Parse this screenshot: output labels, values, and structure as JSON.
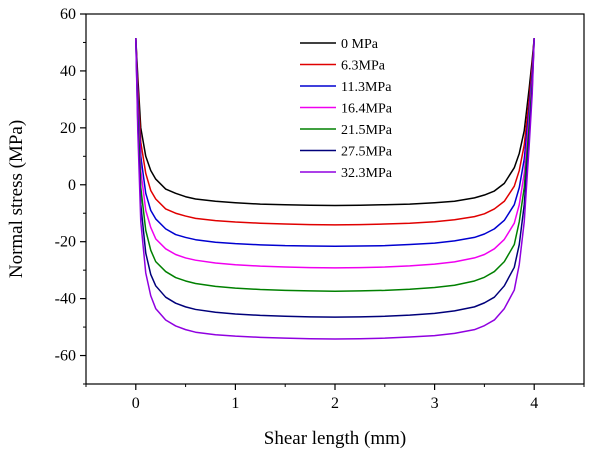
{
  "chart_data": {
    "type": "line",
    "title": "",
    "xlabel": "Shear length (mm)",
    "ylabel": "Normal stress (MPa)",
    "xlim": [
      -0.5,
      4.5
    ],
    "ylim": [
      -70,
      60
    ],
    "xticks": [
      0,
      1,
      2,
      3,
      4
    ],
    "yticks": [
      -60,
      -40,
      -20,
      0,
      20,
      40,
      60
    ],
    "x_tick_labels": [
      "0",
      "1",
      "2",
      "3",
      "4"
    ],
    "y_tick_labels": [
      "-60",
      "-40",
      "-20",
      "0",
      "20",
      "40",
      "60"
    ],
    "grid": false,
    "legend_position": "top-center",
    "x": [
      0,
      0.02,
      0.05,
      0.1,
      0.15,
      0.2,
      0.3,
      0.4,
      0.5,
      0.6,
      0.8,
      1.0,
      1.25,
      1.5,
      1.75,
      2.0,
      2.25,
      2.5,
      2.75,
      3.0,
      3.2,
      3.4,
      3.5,
      3.6,
      3.7,
      3.8,
      3.85,
      3.9,
      3.95,
      3.98,
      4.0
    ],
    "series": [
      {
        "name": "0 MPa",
        "color": "#000000",
        "values": [
          51.5,
          38,
          20,
          10,
          5,
          2,
          -1.5,
          -3,
          -4.2,
          -5,
          -5.8,
          -6.3,
          -6.8,
          -7.0,
          -7.2,
          -7.3,
          -7.2,
          -7.0,
          -6.8,
          -6.3,
          -5.8,
          -4.6,
          -3.6,
          -2.2,
          0.5,
          6,
          11,
          19,
          34,
          44,
          51.5
        ]
      },
      {
        "name": "6.3MPa",
        "color": "#e00000",
        "values": [
          51.5,
          35,
          15,
          4,
          -2,
          -5,
          -8.5,
          -10,
          -11,
          -11.8,
          -12.6,
          -13.1,
          -13.5,
          -13.8,
          -14.0,
          -14.1,
          -14.0,
          -13.8,
          -13.5,
          -13.0,
          -12.3,
          -11.2,
          -10.2,
          -8.5,
          -5.8,
          -0.5,
          5,
          14,
          30,
          42,
          51.5
        ]
      },
      {
        "name": "11.3MPa",
        "color": "#0000d0",
        "values": [
          51.5,
          32,
          10,
          -3,
          -9,
          -12,
          -15.5,
          -17.5,
          -18.5,
          -19.3,
          -20.2,
          -20.7,
          -21.1,
          -21.4,
          -21.5,
          -21.6,
          -21.5,
          -21.4,
          -21.0,
          -20.5,
          -19.7,
          -18.5,
          -17.3,
          -15.5,
          -12.5,
          -7,
          -1,
          9,
          27,
          40,
          51.5
        ]
      },
      {
        "name": "16.4MPa",
        "color": "#f000f0",
        "values": [
          51.5,
          29,
          5,
          -9,
          -15,
          -19,
          -22.5,
          -24.5,
          -25.7,
          -26.5,
          -27.5,
          -28.1,
          -28.6,
          -28.9,
          -29.1,
          -29.2,
          -29.1,
          -28.9,
          -28.5,
          -27.9,
          -27.1,
          -25.7,
          -24.5,
          -22.5,
          -19.2,
          -13.5,
          -7,
          4,
          24,
          38,
          51.5
        ]
      },
      {
        "name": "21.5MPa",
        "color": "#008000",
        "values": [
          51.5,
          26,
          -1,
          -16,
          -23,
          -27,
          -30.5,
          -32.6,
          -33.8,
          -34.7,
          -35.7,
          -36.3,
          -36.8,
          -37.1,
          -37.3,
          -37.4,
          -37.3,
          -37.1,
          -36.7,
          -36.1,
          -35.3,
          -33.8,
          -32.5,
          -30.5,
          -27,
          -21,
          -13,
          -1,
          21,
          36,
          51.5
        ]
      },
      {
        "name": "27.5MPa",
        "color": "#00007a",
        "values": [
          51.5,
          22,
          -7,
          -24,
          -31.5,
          -35.5,
          -39.5,
          -41.6,
          -42.9,
          -43.8,
          -44.8,
          -45.4,
          -45.9,
          -46.2,
          -46.4,
          -46.5,
          -46.4,
          -46.2,
          -45.8,
          -45.2,
          -44.3,
          -42.9,
          -41.5,
          -39.5,
          -35.5,
          -29,
          -21,
          -7,
          17,
          34,
          51.5
        ]
      },
      {
        "name": "32.3MPa",
        "color": "#9000e0",
        "values": [
          51.5,
          19,
          -13,
          -31,
          -39,
          -43.5,
          -47.5,
          -49.6,
          -50.9,
          -51.8,
          -52.7,
          -53.2,
          -53.6,
          -53.9,
          -54.1,
          -54.2,
          -54.1,
          -53.9,
          -53.5,
          -53.0,
          -52.2,
          -50.9,
          -49.5,
          -47.5,
          -43.5,
          -37,
          -28,
          -13,
          14,
          32,
          51.5
        ]
      }
    ]
  }
}
